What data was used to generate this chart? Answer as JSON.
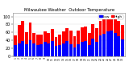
{
  "title": "Milwaukee Weather  Outdoor Temperature",
  "legend_label_low": "Low",
  "legend_label_high": "High",
  "high_color": "#ff0000",
  "low_color": "#0000ff",
  "background_color": "#ffffff",
  "ylim": [
    0,
    110
  ],
  "ytick_labels": [
    "0",
    "20",
    "40",
    "60",
    "80",
    "100"
  ],
  "ytick_vals": [
    0,
    20,
    40,
    60,
    80,
    100
  ],
  "highs": [
    52,
    78,
    88,
    60,
    85,
    58,
    55,
    55,
    62,
    58,
    68,
    48,
    55,
    62,
    70,
    65,
    50,
    65,
    72,
    75,
    58,
    80,
    70,
    88,
    92,
    98,
    100,
    95,
    88,
    78
  ],
  "lows": [
    28,
    32,
    38,
    30,
    40,
    32,
    28,
    30,
    35,
    32,
    38,
    25,
    28,
    32,
    38,
    30,
    22,
    30,
    36,
    38,
    28,
    44,
    36,
    52,
    56,
    62,
    65,
    58,
    50,
    42
  ],
  "bar_width": 0.42,
  "grid_color": "#dddddd",
  "border_color": "#888888",
  "tick_fontsize": 3.5,
  "title_fontsize": 3.8,
  "legend_fontsize": 3.2
}
